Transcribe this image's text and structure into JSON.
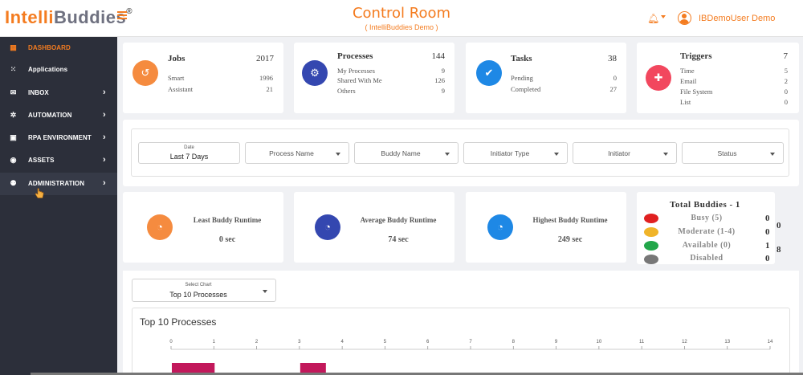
{
  "header": {
    "logo_part1": "Intelli",
    "logo_part2": "Buddies",
    "logo_mark": "®",
    "title": "Control Room",
    "subtitle": "( IntelliBuddies Demo )",
    "username": "IBDemoUser Demo"
  },
  "sidebar": {
    "items": [
      {
        "label": "DASHBOARD",
        "icon": "grid-icon",
        "glyph": "▦",
        "active": true,
        "chevron": false
      },
      {
        "label": "Applications",
        "icon": "apps-icon",
        "glyph": "⁙",
        "active": false,
        "chevron": false
      },
      {
        "label": "INBOX",
        "icon": "mail-icon",
        "glyph": "✉",
        "active": false,
        "chevron": true
      },
      {
        "label": "AUTOMATION",
        "icon": "gear-icon",
        "glyph": "✲",
        "active": false,
        "chevron": true
      },
      {
        "label": "RPA ENVIRONMENT",
        "icon": "robot-icon",
        "glyph": "▣",
        "active": false,
        "chevron": true
      },
      {
        "label": "ASSETS",
        "icon": "assets-icon",
        "glyph": "◉",
        "active": false,
        "chevron": true
      },
      {
        "label": "ADMINISTRATION",
        "icon": "users-icon",
        "glyph": "⚉",
        "active": false,
        "chevron": true
      }
    ],
    "chevron": "›"
  },
  "cards": {
    "jobs": {
      "title": "Jobs",
      "total": "2017",
      "rows": [
        {
          "label": "Smart",
          "value": "1996"
        },
        {
          "label": "Assistant",
          "value": "21"
        }
      ],
      "color": "#f58b3f"
    },
    "processes": {
      "title": "Processes",
      "total": "144",
      "rows": [
        {
          "label": "My Processes",
          "value": "9"
        },
        {
          "label": "Shared With Me",
          "value": "126"
        },
        {
          "label": "Others",
          "value": "9"
        }
      ],
      "color": "#3447b0"
    },
    "tasks": {
      "title": "Tasks",
      "total": "38",
      "rows": [
        {
          "label": "Pending",
          "value": "0"
        },
        {
          "label": "Completed",
          "value": "27"
        }
      ],
      "color": "#1e88e5"
    },
    "triggers": {
      "title": "Triggers",
      "total": "7",
      "rows": [
        {
          "label": "Time",
          "value": "5"
        },
        {
          "label": "Email",
          "value": "2"
        },
        {
          "label": "File System",
          "value": "0"
        },
        {
          "label": "List",
          "value": "0"
        }
      ],
      "color": "#f2475e"
    }
  },
  "filters": {
    "date_label": "Date",
    "date_value": "Last 7 Days",
    "process_name": "Process Name",
    "buddy_name": "Buddy Name",
    "initiator_type": "Initiator Type",
    "initiator": "Initiator",
    "status": "Status"
  },
  "runtime": {
    "least": {
      "title": "Least Buddy Runtime",
      "value": "0  sec",
      "color": "#f58b3f"
    },
    "average": {
      "title": "Average Buddy Runtime",
      "value": "74  sec",
      "color": "#3447b0"
    },
    "highest": {
      "title": "Highest Buddy Runtime",
      "value": "249  sec",
      "color": "#1e88e5"
    }
  },
  "buddies": {
    "title": "Total  Buddies  -  1",
    "rows": [
      {
        "label": "Busy  (5)",
        "value": "0",
        "color": "#e02020"
      },
      {
        "label": "Moderate  (1-4)",
        "value": "0",
        "color": "#f0b429"
      },
      {
        "label": "Available  (0)",
        "value": "1",
        "color": "#22a64a"
      },
      {
        "label": "Disabled",
        "value": "0",
        "color": "#777777"
      }
    ],
    "side_values": [
      "0",
      "8"
    ]
  },
  "chart": {
    "select_label": "Select Chart",
    "select_value": "Top 10 Processes",
    "title": "Top 10 Processes"
  },
  "chart_data": {
    "type": "bar",
    "title": "Top 10 Processes",
    "xlim": [
      0,
      14
    ],
    "x_ticks": [
      "0",
      "1",
      "2",
      "3",
      "4",
      "5",
      "6",
      "7",
      "8",
      "9",
      "10",
      "11",
      "12",
      "13",
      "14"
    ],
    "bars": [
      {
        "value": 1,
        "color": "#c2185b"
      },
      {
        "value": 0.6,
        "color": "#c2185b",
        "offset": 3
      }
    ]
  }
}
